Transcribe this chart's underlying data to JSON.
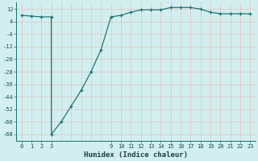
{
  "x": [
    0,
    1,
    2,
    3,
    3.01,
    4,
    5,
    6,
    7,
    8,
    9,
    10,
    11,
    12,
    13,
    14,
    15,
    16,
    17,
    18,
    19,
    20,
    21,
    22,
    23
  ],
  "y": [
    8,
    7.5,
    7,
    7,
    -68,
    -60,
    -50,
    -40,
    -28,
    -14,
    7,
    8,
    10,
    11.5,
    11.5,
    11.5,
    13,
    13,
    13,
    12,
    10,
    9,
    9,
    9,
    9
  ],
  "xlim": [
    -0.5,
    23.5
  ],
  "ylim": [
    -72,
    16
  ],
  "yticks": [
    12,
    4,
    -4,
    -12,
    -20,
    -28,
    -36,
    -44,
    -52,
    -60,
    -68
  ],
  "xtick_positions": [
    0,
    1,
    2,
    3,
    9,
    10,
    11,
    12,
    13,
    14,
    15,
    16,
    17,
    18,
    19,
    20,
    21,
    22,
    23
  ],
  "xtick_labels": [
    "0",
    "1",
    "2",
    "3",
    "9",
    "10",
    "11",
    "12",
    "13",
    "14",
    "15",
    "16",
    "17",
    "18",
    "19",
    "20",
    "21",
    "22",
    "23"
  ],
  "xlabel": "Humidex (Indice chaleur)",
  "line_color": "#1a7070",
  "bg_color": "#d2eeee",
  "grid_major_color": "#c8dede",
  "grid_minor_color": "#e0c8c8"
}
